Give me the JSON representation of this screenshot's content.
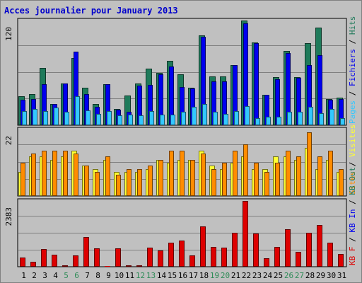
{
  "colors": {
    "background": "#c0c0c0",
    "grid": "#808080",
    "title": "#0000cc",
    "hits": "#1e7a5a",
    "files": "#0000ee",
    "pages": "#33c8ff",
    "visits": "#ffff33",
    "sites": "#ff8c00",
    "kbin": "#dd0000",
    "weekend_day": "#2e8b57",
    "weekday": "#000000"
  },
  "chart_data": {
    "type": "bar",
    "title": "Acces journalier pour January 2013",
    "days": [
      "1",
      "2",
      "3",
      "4",
      "5",
      "6",
      "7",
      "8",
      "9",
      "10",
      "11",
      "12",
      "13",
      "14",
      "15",
      "16",
      "17",
      "18",
      "19",
      "20",
      "21",
      "22",
      "23",
      "24",
      "25",
      "26",
      "27",
      "28",
      "29",
      "30",
      "31"
    ],
    "weekend_days": [
      "5",
      "6",
      "12",
      "13",
      "19",
      "20",
      "26",
      "27"
    ],
    "panels": [
      {
        "id": "hits_files_pages",
        "scale_label": "120",
        "ymax": 120,
        "legend": [
          "Pages",
          "Fichiers",
          "Hits"
        ],
        "series": [
          {
            "name": "Hits",
            "values": [
              33,
              36,
              66,
              24,
              48,
              77,
              43,
              24,
              47,
              19,
              34,
              48,
              65,
              60,
              74,
              58,
              43,
              103,
              56,
              56,
              69,
              120,
              95,
              35,
              55,
              85,
              55,
              94,
              112,
              30,
              32
            ]
          },
          {
            "name": "Fichiers",
            "values": [
              29,
              30,
              47,
              24,
              48,
              84,
              36,
              21,
              47,
              18,
              15,
              45,
              46,
              58,
              67,
              44,
              42,
              101,
              50,
              50,
              69,
              117,
              94,
              35,
              53,
              83,
              54,
              69,
              80,
              29,
              30
            ]
          },
          {
            "name": "Pages",
            "values": [
              16,
              19,
              16,
              20,
              15,
              33,
              17,
              13,
              16,
              11,
              12,
              11,
              16,
              12,
              12,
              15,
              21,
              24,
              15,
              13,
              16,
              22,
              8,
              10,
              10,
              15,
              15,
              21,
              14,
              19,
              8
            ]
          }
        ]
      },
      {
        "id": "visits_sites",
        "scale_label": "22",
        "ymax": 22,
        "legend": [
          "Sites",
          "Visites"
        ],
        "series": [
          {
            "name": "Visites",
            "values": [
              8,
              13,
              13,
              12,
              13,
              15,
              10,
              9,
              12,
              8,
              8,
              8,
              9,
              12,
              11,
              12,
              12,
              15,
              10,
              9,
              11,
              13,
              9,
              9,
              13,
              13,
              12,
              16,
              9,
              12,
              8
            ]
          },
          {
            "name": "Sites",
            "values": [
              11,
              14,
              15,
              15,
              15,
              14,
              10,
              8,
              13,
              7,
              9,
              9,
              10,
              12,
              15,
              15,
              12,
              14,
              9,
              11,
              15,
              17,
              11,
              8,
              11,
              15,
              13,
              21,
              13,
              15,
              9
            ]
          }
        ]
      },
      {
        "id": "kbytes",
        "scale_label": "2383",
        "ymax": 2383,
        "legend": [
          "KB F",
          "KB In",
          "KB Out"
        ],
        "series": [
          {
            "name": "KB F",
            "values": [
              330,
              170,
              640,
              440,
              60,
              400,
              1080,
              670,
              30,
              660,
              60,
              60,
              680,
              580,
              870,
              960,
              420,
              1470,
              710,
              700,
              1230,
              2383,
              1200,
              310,
              720,
              1360,
              540,
              1240,
              1500,
              880,
              450
            ]
          }
        ]
      }
    ]
  }
}
